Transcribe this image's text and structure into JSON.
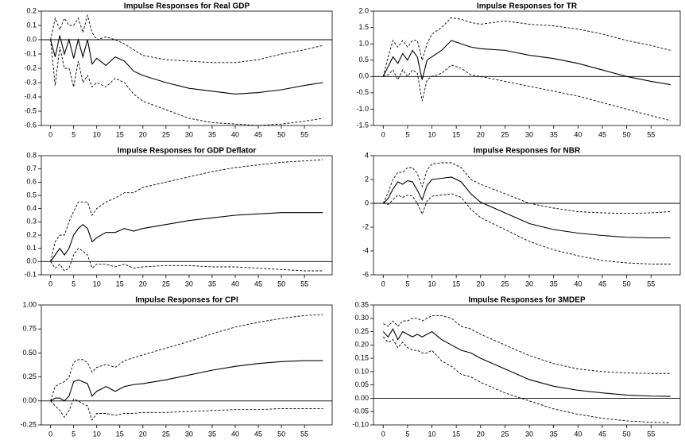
{
  "chart_data": [
    {
      "type": "line",
      "title": "Impulse Responses for Real GDP",
      "x": [
        0,
        1,
        2,
        3,
        4,
        5,
        6,
        7,
        8,
        9,
        10,
        12,
        14,
        16,
        18,
        20,
        25,
        30,
        35,
        40,
        45,
        50,
        55,
        59
      ],
      "xlim": [
        -2,
        61
      ],
      "xticks": [
        0,
        5,
        10,
        15,
        20,
        25,
        30,
        35,
        40,
        45,
        50,
        55
      ],
      "ylim": [
        -0.6,
        0.2
      ],
      "yticks": [
        -0.6,
        -0.5,
        -0.4,
        -0.3,
        -0.2,
        -0.1,
        {
          "value": 0,
          "label": "0.0"
        },
        0.1,
        0.2
      ],
      "hline": 0,
      "series": [
        {
          "color": "#000000",
          "style": "solid",
          "values": [
            0,
            -0.12,
            0.03,
            -0.1,
            0.0,
            -0.13,
            0.0,
            -0.12,
            0.0,
            -0.17,
            -0.13,
            -0.18,
            -0.12,
            -0.15,
            -0.22,
            -0.25,
            -0.3,
            -0.34,
            -0.36,
            -0.38,
            -0.37,
            -0.35,
            -0.32,
            -0.3
          ]
        },
        {
          "color": "#000000",
          "style": "dashed",
          "values": [
            0,
            0.15,
            0.07,
            0.15,
            0.1,
            0.1,
            0.15,
            0.05,
            0.17,
            0.05,
            0.0,
            0.02,
            0.0,
            -0.03,
            -0.07,
            -0.11,
            -0.14,
            -0.15,
            -0.16,
            -0.16,
            -0.14,
            -0.1,
            -0.07,
            -0.04
          ]
        },
        {
          "color": "#000000",
          "style": "dashed",
          "values": [
            0,
            -0.32,
            -0.05,
            -0.2,
            -0.2,
            -0.33,
            -0.15,
            -0.3,
            -0.25,
            -0.33,
            -0.3,
            -0.33,
            -0.27,
            -0.3,
            -0.38,
            -0.43,
            -0.49,
            -0.55,
            -0.58,
            -0.59,
            -0.6,
            -0.59,
            -0.57,
            -0.55
          ]
        }
      ]
    },
    {
      "type": "line",
      "title": "Impulse Responses for TR",
      "x": [
        0,
        1,
        2,
        3,
        4,
        5,
        6,
        7,
        8,
        9,
        10,
        12,
        14,
        16,
        18,
        20,
        25,
        30,
        35,
        40,
        45,
        50,
        55,
        59
      ],
      "xlim": [
        -2,
        61
      ],
      "xticks": [
        0,
        5,
        10,
        15,
        20,
        25,
        30,
        35,
        40,
        45,
        50,
        55
      ],
      "ylim": [
        -1.5,
        2
      ],
      "yticks": [
        -1.5,
        {
          "value": -1,
          "label": "-1.0"
        },
        -0.5,
        {
          "value": 0,
          "label": "0.0"
        },
        0.5,
        {
          "value": 1,
          "label": "1.0"
        },
        1.5,
        {
          "value": 2,
          "label": "2.0"
        }
      ],
      "hline": 0,
      "series": [
        {
          "color": "#000000",
          "style": "solid",
          "values": [
            0,
            0.3,
            0.6,
            0.4,
            0.7,
            0.5,
            0.8,
            0.6,
            -0.1,
            0.5,
            0.6,
            0.8,
            1.1,
            1.0,
            0.9,
            0.85,
            0.8,
            0.65,
            0.55,
            0.4,
            0.2,
            0.0,
            -0.15,
            -0.25
          ]
        },
        {
          "color": "#000000",
          "style": "dashed",
          "values": [
            0,
            0.6,
            1.1,
            0.9,
            1.1,
            0.9,
            1.1,
            1.1,
            0.5,
            1.0,
            1.3,
            1.5,
            1.8,
            1.75,
            1.65,
            1.6,
            1.7,
            1.6,
            1.55,
            1.45,
            1.3,
            1.1,
            0.95,
            0.8
          ]
        },
        {
          "color": "#000000",
          "style": "dashed",
          "values": [
            0,
            0.05,
            0.2,
            -0.1,
            0.2,
            0.0,
            0.2,
            0.1,
            -0.75,
            -0.1,
            0.0,
            0.1,
            0.35,
            0.25,
            0.05,
            0.0,
            -0.15,
            -0.3,
            -0.45,
            -0.6,
            -0.8,
            -1.0,
            -1.2,
            -1.35
          ]
        }
      ]
    },
    {
      "type": "line",
      "title": "Impulse Responses for GDP Deflator",
      "x": [
        0,
        1,
        2,
        3,
        4,
        5,
        6,
        7,
        8,
        9,
        10,
        12,
        14,
        16,
        18,
        20,
        25,
        30,
        35,
        40,
        45,
        50,
        55,
        59
      ],
      "xlim": [
        -2,
        61
      ],
      "xticks": [
        0,
        5,
        10,
        15,
        20,
        25,
        30,
        35,
        40,
        45,
        50,
        55
      ],
      "ylim": [
        -0.1,
        0.8
      ],
      "yticks": [
        -0.1,
        {
          "value": 0,
          "label": "0.0"
        },
        0.1,
        0.2,
        0.3,
        0.4,
        0.5,
        0.6,
        0.7,
        0.8
      ],
      "hline": 0,
      "series": [
        {
          "color": "#000000",
          "style": "solid",
          "values": [
            0,
            0.05,
            0.1,
            0.05,
            0.1,
            0.2,
            0.25,
            0.28,
            0.25,
            0.15,
            0.18,
            0.22,
            0.22,
            0.25,
            0.23,
            0.25,
            0.28,
            0.31,
            0.33,
            0.35,
            0.36,
            0.37,
            0.37,
            0.37
          ]
        },
        {
          "color": "#000000",
          "style": "dashed",
          "values": [
            0,
            0.15,
            0.2,
            0.2,
            0.3,
            0.38,
            0.45,
            0.45,
            0.45,
            0.35,
            0.4,
            0.45,
            0.48,
            0.52,
            0.52,
            0.56,
            0.6,
            0.64,
            0.68,
            0.71,
            0.73,
            0.75,
            0.76,
            0.77
          ]
        },
        {
          "color": "#000000",
          "style": "dashed",
          "values": [
            0,
            -0.05,
            -0.02,
            -0.07,
            -0.05,
            0.05,
            0.1,
            0.08,
            0.05,
            -0.05,
            -0.02,
            -0.02,
            -0.04,
            -0.02,
            -0.05,
            -0.04,
            -0.03,
            -0.03,
            -0.04,
            -0.04,
            -0.05,
            -0.06,
            -0.07,
            -0.07
          ]
        }
      ]
    },
    {
      "type": "line",
      "title": "Impulse Responses for NBR",
      "x": [
        0,
        1,
        2,
        3,
        4,
        5,
        6,
        7,
        8,
        9,
        10,
        12,
        14,
        16,
        18,
        20,
        25,
        30,
        35,
        40,
        45,
        50,
        55,
        59
      ],
      "xlim": [
        -2,
        61
      ],
      "xticks": [
        0,
        5,
        10,
        15,
        20,
        25,
        30,
        35,
        40,
        45,
        50,
        55
      ],
      "ylim": [
        -6,
        4
      ],
      "yticks": [
        -6,
        -4,
        -2,
        0,
        2,
        4
      ],
      "hline": 0,
      "series": [
        {
          "color": "#000000",
          "style": "solid",
          "values": [
            0,
            0.4,
            1.2,
            1.8,
            1.6,
            1.9,
            1.8,
            1.1,
            0.3,
            1.5,
            2.0,
            2.1,
            2.2,
            1.8,
            0.8,
            0.1,
            -0.8,
            -1.7,
            -2.2,
            -2.5,
            -2.7,
            -2.85,
            -2.9,
            -2.9
          ]
        },
        {
          "color": "#000000",
          "style": "dashed",
          "values": [
            0,
            0.9,
            2.0,
            2.6,
            2.6,
            3.0,
            3.0,
            2.5,
            1.4,
            2.8,
            3.3,
            3.4,
            3.4,
            3.0,
            2.0,
            1.6,
            0.8,
            0.0,
            -0.4,
            -0.7,
            -0.8,
            -0.85,
            -0.8,
            -0.7
          ]
        },
        {
          "color": "#000000",
          "style": "dashed",
          "values": [
            0,
            -0.1,
            0.3,
            0.7,
            0.5,
            0.7,
            0.6,
            0.0,
            -0.9,
            0.2,
            0.6,
            0.7,
            0.8,
            0.5,
            -0.5,
            -1.2,
            -2.2,
            -3.2,
            -3.9,
            -4.4,
            -4.8,
            -5.0,
            -5.1,
            -5.1
          ]
        }
      ]
    },
    {
      "type": "line",
      "title": "Impulse Responses for CPI",
      "x": [
        0,
        1,
        2,
        3,
        4,
        5,
        6,
        7,
        8,
        9,
        10,
        12,
        14,
        16,
        18,
        20,
        25,
        30,
        35,
        40,
        45,
        50,
        55,
        59
      ],
      "xlim": [
        -2,
        61
      ],
      "xticks": [
        0,
        5,
        10,
        15,
        20,
        25,
        30,
        35,
        40,
        45,
        50,
        55
      ],
      "ylim": [
        -0.25,
        1
      ],
      "yticks": [
        -0.25,
        {
          "value": 0,
          "label": "0.00"
        },
        0.25,
        {
          "value": 0.5,
          "label": "0.50"
        },
        0.75,
        {
          "value": 1,
          "label": "1.00"
        }
      ],
      "hline": 0,
      "series": [
        {
          "color": "#000000",
          "style": "solid",
          "values": [
            0,
            0.03,
            0.03,
            0.0,
            0.05,
            0.2,
            0.22,
            0.2,
            0.18,
            0.05,
            0.1,
            0.15,
            0.1,
            0.15,
            0.17,
            0.18,
            0.22,
            0.27,
            0.32,
            0.36,
            0.39,
            0.41,
            0.42,
            0.42
          ]
        },
        {
          "color": "#000000",
          "style": "dashed",
          "values": [
            0,
            0.15,
            0.18,
            0.2,
            0.25,
            0.4,
            0.43,
            0.43,
            0.4,
            0.3,
            0.35,
            0.38,
            0.35,
            0.42,
            0.45,
            0.48,
            0.55,
            0.62,
            0.7,
            0.77,
            0.82,
            0.86,
            0.89,
            0.9
          ]
        },
        {
          "color": "#000000",
          "style": "dashed",
          "values": [
            0,
            -0.05,
            -0.1,
            -0.17,
            -0.1,
            0.02,
            0.0,
            -0.03,
            -0.05,
            -0.2,
            -0.13,
            -0.13,
            -0.15,
            -0.13,
            -0.13,
            -0.12,
            -0.12,
            -0.11,
            -0.1,
            -0.09,
            -0.09,
            -0.08,
            -0.08,
            -0.08
          ]
        }
      ]
    },
    {
      "type": "line",
      "title": "Impulse Responses for 3MDEP",
      "x": [
        0,
        1,
        2,
        3,
        4,
        5,
        6,
        7,
        8,
        9,
        10,
        12,
        14,
        16,
        18,
        20,
        25,
        30,
        35,
        40,
        45,
        50,
        55,
        59
      ],
      "xlim": [
        -2,
        61
      ],
      "xticks": [
        0,
        5,
        10,
        15,
        20,
        25,
        30,
        35,
        40,
        45,
        50,
        55
      ],
      "ylim": [
        -0.1,
        0.35
      ],
      "yticks": [
        {
          "value": -0.1,
          "label": "-0.10"
        },
        -0.05,
        {
          "value": 0,
          "label": "0.00"
        },
        0.05,
        {
          "value": 0.1,
          "label": "0.10"
        },
        0.15,
        {
          "value": 0.2,
          "label": "0.20"
        },
        0.25,
        {
          "value": 0.3,
          "label": "0.30"
        },
        0.35
      ],
      "hline": 0,
      "series": [
        {
          "color": "#000000",
          "style": "solid",
          "values": [
            0.25,
            0.23,
            0.26,
            0.22,
            0.25,
            0.24,
            0.23,
            0.24,
            0.23,
            0.24,
            0.25,
            0.22,
            0.2,
            0.18,
            0.17,
            0.15,
            0.11,
            0.07,
            0.045,
            0.03,
            0.02,
            0.012,
            0.008,
            0.007
          ]
        },
        {
          "color": "#000000",
          "style": "dashed",
          "values": [
            0.28,
            0.27,
            0.29,
            0.27,
            0.29,
            0.29,
            0.3,
            0.3,
            0.29,
            0.3,
            0.31,
            0.31,
            0.3,
            0.27,
            0.26,
            0.24,
            0.2,
            0.16,
            0.13,
            0.11,
            0.1,
            0.095,
            0.093,
            0.093
          ]
        },
        {
          "color": "#000000",
          "style": "dashed",
          "values": [
            0.23,
            0.21,
            0.22,
            0.19,
            0.21,
            0.19,
            0.18,
            0.18,
            0.17,
            0.17,
            0.18,
            0.14,
            0.12,
            0.09,
            0.08,
            0.06,
            0.02,
            -0.01,
            -0.04,
            -0.06,
            -0.075,
            -0.085,
            -0.09,
            -0.092
          ]
        }
      ]
    }
  ]
}
